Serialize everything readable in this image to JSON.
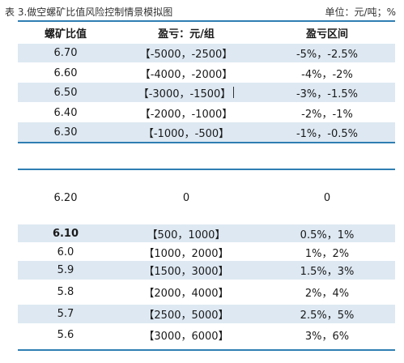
{
  "caption": {
    "title": "表 3.做空螺矿比值风险控制情景模拟图",
    "unit": "单位：元/吨；%"
  },
  "table1": {
    "headers": [
      "螺矿比值",
      "盈亏：元/组",
      "盈亏区间"
    ],
    "rows": [
      [
        "6.70",
        "【-5000，-2500】",
        "-5%，-2.5%"
      ],
      [
        "6.60",
        "【-4000，-2000】",
        "-4%，-2%"
      ],
      [
        "6.50",
        "【-3000，-1500】",
        "-3%，-1.5%"
      ],
      [
        "6.40",
        "【-2000，-1000】",
        "-2%，-1%"
      ],
      [
        "6.30",
        "【-1000，-500】",
        "-1%，-0.5%"
      ]
    ]
  },
  "table2": {
    "rows": [
      [
        "6.20",
        "0",
        "0"
      ],
      [
        "6.10",
        "【500，1000】",
        "0.5%，1%"
      ],
      [
        "6.0",
        "【1000，2000】",
        "1%，2%"
      ],
      [
        "5.9",
        "【1500，3000】",
        "1.5%，3%"
      ],
      [
        "5.8",
        "【2000，4000】",
        "2%，4%"
      ],
      [
        "5.7",
        "【2500，5000】",
        "2.5%，5%"
      ],
      [
        "5.6",
        "【3000，6000】",
        "3%，6%"
      ]
    ]
  },
  "colors": {
    "accent_rule": "#2f7fb3",
    "row_shade": "#dde8f2"
  }
}
